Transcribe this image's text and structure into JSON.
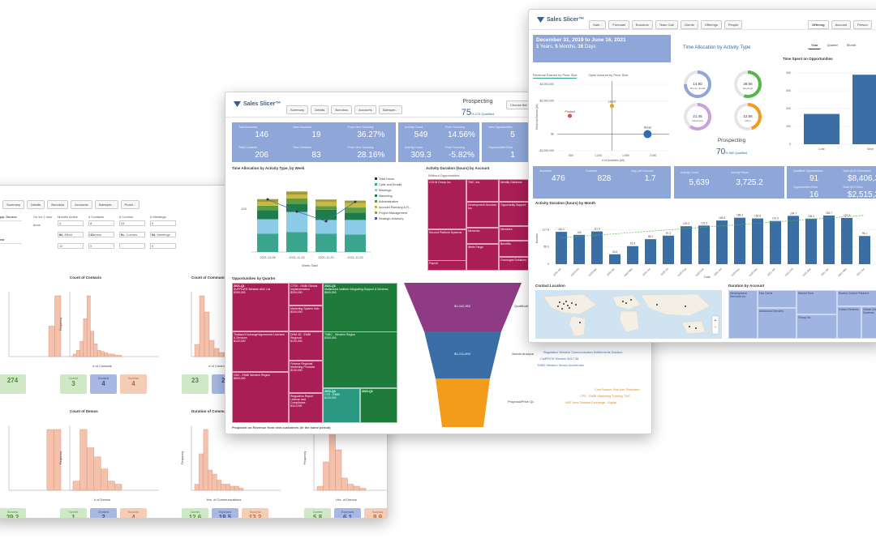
{
  "win1": {
    "buttons": [
      "Summary",
      "Details",
      "Bonobos",
      "Accounts",
      "Salesper...",
      "Prosh..."
    ],
    "filters": [
      "Opp. Source",
      "Year"
    ],
    "field_labels": [
      "Months Active",
      "# Contacts",
      "# Comms",
      "# Meetings",
      "Hrs. Effort",
      "# Demos",
      "Hrs. Comms",
      "Hrs. Meetings"
    ],
    "field_values": [
      "4",
      "8",
      "24",
      "0",
      "30",
      "12",
      "0",
      "24",
      "12",
      "0",
      "",
      "0"
    ],
    "misc": "Go for 1 hour",
    "misc2": "done",
    "charts": [
      {
        "title": "",
        "xlabel": "",
        "stats": [
          [
            "",
            "274"
          ]
        ]
      },
      {
        "title": "Count of Contacts",
        "xlabel": "# of Contacts",
        "ylabel": "Frequency",
        "stats": [
          [
            "Current",
            "3"
          ],
          [
            "Greatest",
            "4"
          ],
          [
            "Success",
            "4"
          ]
        ]
      },
      {
        "title": "Count of Communications",
        "xlabel": "# of Communications",
        "ylabel": "",
        "stats": [
          [
            "",
            "23"
          ],
          [
            "",
            "28"
          ]
        ]
      },
      {
        "title": "",
        "xlabel": "",
        "stats": [
          [
            "Success",
            "39.2"
          ]
        ]
      },
      {
        "title": "Count of Demos",
        "xlabel": "# of Demos",
        "ylabel": "Frequency",
        "stats": [
          [
            "Current",
            "1"
          ],
          [
            "Greatest",
            "2"
          ],
          [
            "Success",
            "4"
          ]
        ]
      },
      {
        "title": "Duration of Communications",
        "xlabel": "Hrs. of Communications",
        "ylabel": "Frequency",
        "stats": [
          [
            "Current",
            "12.6"
          ],
          [
            "Expenses",
            "18.5"
          ],
          [
            "Success",
            "13.2"
          ]
        ]
      },
      {
        "title": "",
        "xlabel": "Hrs. of Demos",
        "ylabel": "Frequency",
        "stats": [
          [
            "Current",
            "5.8"
          ],
          [
            "Expenses",
            "6.1"
          ],
          [
            "Success",
            "8.9"
          ]
        ]
      }
    ]
  },
  "win2": {
    "logo": "Sales Slicer™",
    "tabs": [
      "Summary",
      "Details",
      "Bonobos",
      "Accounts",
      "Salesper..."
    ],
    "prospect_title": "Prospecting",
    "prospect_pct": "75",
    "prospect_sub": "% 275 Qualified",
    "choose": "Choose the...",
    "kpis1": [
      [
        "Total Accounts",
        "146"
      ],
      [
        "New Accounts",
        "19"
      ],
      [
        "From New Sourcing",
        "36.27%"
      ],
      [
        "Total Contacts",
        "206"
      ],
      [
        "New Contacts",
        "83"
      ],
      [
        "From New Sourcing",
        "28.16%"
      ]
    ],
    "kpis2": [
      [
        "Activity Count",
        "549"
      ],
      [
        "From Sourcing",
        "14.56%"
      ],
      [
        "Activity Hours",
        "309.3"
      ],
      [
        "From Sourcing",
        "-5.82%"
      ]
    ],
    "kpis3": [
      [
        "New Opportunities",
        "5"
      ],
      [
        "Opportunities Won",
        "1"
      ]
    ],
    "sec1": "Time Allocation by Activity Type, by Week",
    "sec2": "Activity Duration (hours) by Account",
    "sec2sub": "Without Opportunities",
    "sec3": "Opportunities by Quarter",
    "sec4": "Proposed on Revenue from new customers (in the same period)",
    "week_ticks": [
      "2021-11-08",
      "2021-11-15",
      "2021-11-22",
      "2021-11-29"
    ],
    "week_xlabel": "Week Start",
    "week_y": [
      "100",
      "200"
    ],
    "legend": [
      "Total Hours",
      "Calls and Emails",
      "Meetings",
      "Marketing",
      "Administrative",
      "Account Planning & R...",
      "Project Management",
      "Strategic Advisory"
    ],
    "legend_colors": [
      "#333",
      "#3aa58c",
      "#8ccbe8",
      "#1e7b4c",
      "#5b9d3f",
      "#c9b93c",
      "#9e9c3a",
      "#5e4e8e"
    ],
    "treemap_labels": [
      "CGLM Group Inc.",
      "TMC, Inc.",
      "Identity Solutions",
      "Opportunity Support",
      "Development Services Inc.",
      "Memento",
      "Members",
      "Benefits",
      "Second Platform Systems",
      "Wells Fargo",
      "Oncologist Solutions",
      "Payroll"
    ],
    "opp_q": [
      "2021-Q1",
      "2021-Q2",
      "2021-Q3",
      "2022-Q1",
      "2022-Q4",
      "2022-Q2",
      "2022-Q3",
      "2022-Q1"
    ],
    "opp_labels": [
      "SUPPLIER Western ABC Ltd",
      "$300,000",
      "CTSS - EMBI Clinical Implementation",
      "Marketing System Hub",
      "$200,000",
      "Multimedia Institute Integrating Support & Services",
      "$600,000",
      "Thailand Exchange/Agreement Licenses & Services",
      "$122,000",
      "Vendor Express Payment Platform",
      "$120,000",
      "DHM 4D - EMBI Regional",
      "$130,000",
      "Finance Regional Marketing Products",
      "$130,000",
      "Reliance Express Regional Licenses",
      "$130,000",
      "Tailored Solutions",
      "$120,000",
      "Regulation Report License and Compliance",
      "$110,000",
      "CBC - EMBI Western Region",
      "$600,000",
      "TMBC - Western Region",
      "$300,000",
      "CTR - EMBI",
      "$120,000"
    ],
    "funnel": [
      [
        "$1,042,952",
        "Qualification"
      ],
      [
        "$1,211,000",
        "Needs Analysis"
      ],
      [
        "",
        "Proposal/Price Quote"
      ]
    ]
  },
  "win3": {
    "logo": "Sales Slicer™",
    "tabs": [
      "Sale...",
      "Forecast",
      "Bonobos",
      "Team Call",
      "Clients",
      "Offerings",
      "People"
    ],
    "seg1": [
      "Offering",
      "Account",
      "Person"
    ],
    "seg2": [
      "Year",
      "Quarter",
      "Month"
    ],
    "date_range": "December 31, 2019 to June 16, 2021",
    "duration_parts": [
      "1",
      "Years,",
      "5",
      "Months,",
      "16",
      "Days"
    ],
    "scatter_tabs": [
      "Revenue Earned by Price Size",
      "Open Amount by Price Size"
    ],
    "scatter_y": [
      "$3,000,000",
      "$2,000,000",
      "$0",
      "-$1,000,000"
    ],
    "scatter_x": [
      "500",
      "1,000",
      "1,500",
      "2,000"
    ],
    "scatter_xlabel": "# of Activities (All)",
    "scatter_ylabel": "Revenue Earned (All)",
    "scatter_points": [
      {
        "label": "Product",
        "x": 480,
        "y": 1100000,
        "c": "#d9534f"
      },
      {
        "label": "LEGO",
        "x": 1250,
        "y": 1700000,
        "c": "#e0a72a"
      },
      {
        "label": "Retail",
        "x": 1900,
        "y": 0,
        "c": "#2e6db5"
      }
    ],
    "alloc_title": "Time Allocation by Activity Type",
    "gauges": [
      [
        "14.80",
        "Phone / Email",
        "#8fa7d8"
      ],
      [
        "28.05",
        "Meetings",
        "#53b848"
      ],
      [
        "21.45",
        "Marketing",
        "#c7a1d8"
      ],
      [
        "12.55",
        "Other",
        "#f39c1b"
      ]
    ],
    "prospect_title": "Prospecting",
    "prospect_pct": "70",
    "prospect_sub": "% 580 Qualified",
    "spent_title": "Time Spent on Opportunities",
    "spent_y": [
      "400",
      "300",
      "200",
      "100",
      "0"
    ],
    "spent_x": [
      "Lost",
      "Won"
    ],
    "spent_values": [
      170,
      390
    ],
    "kpis": [
      [
        "Accounts",
        "476"
      ],
      [
        "Contacts",
        "828"
      ],
      [
        "Avg. per Account",
        "1.7"
      ],
      [
        "Activity Count",
        "5,639"
      ],
      [
        "Activity Hours",
        "3,725.2"
      ]
    ],
    "kpis_right": [
      [
        "Qualified Opportunities",
        "91"
      ],
      [
        "Total QUS Generated",
        "$8,406,3"
      ],
      [
        "Opportunities Won",
        "16"
      ],
      [
        "Total QCV Won",
        "$2,515,3"
      ]
    ],
    "duration_title": "Activity Duration (hours) by Month",
    "duration_ylabel": "Duration",
    "duration_xlabel": "Date",
    "bars": [
      {
        "m": "2020-Jan",
        "v": 110.2
      },
      {
        "m": "2020-Feb",
        "v": 100.0
      },
      {
        "m": "2020-Mar",
        "v": 111.5
      },
      {
        "m": "2020-Apr",
        "v": 33.8
      },
      {
        "m": "2020-May",
        "v": 61.5
      },
      {
        "m": "2020-Jun",
        "v": 85.2
      },
      {
        "m": "2020-Jul",
        "v": 97.3
      },
      {
        "m": "2020-Aug",
        "v": 129.3
      },
      {
        "m": "2020-Sep",
        "v": 131.5
      },
      {
        "m": "2020-Oct",
        "v": 148.8
      },
      {
        "m": "2020-Nov",
        "v": 158.3
      },
      {
        "m": "2020-Dec",
        "v": 155.8
      },
      {
        "m": "2021-Jan",
        "v": 147.3
      },
      {
        "m": "2021-Feb",
        "v": 164.7
      },
      {
        "m": "2021-Mar",
        "v": 155.3
      },
      {
        "m": "2021-Apr",
        "v": 165.7
      },
      {
        "m": "2021-May",
        "v": 157.5
      },
      {
        "m": "2021-Jun",
        "v": 96.1
      }
    ],
    "duration_y": [
      "117.8",
      "58.9",
      "0"
    ],
    "contact_title": "Contact Location",
    "account_title": "Duration by Account",
    "account_labels": [
      "Development Services Inc.",
      "Dial Cards",
      "Advanced Services",
      "Market Tech",
      "Group Inc",
      "Boston Control Partners",
      "Cotton Services",
      "Global Solutions Systems"
    ]
  },
  "annotations": {
    "blue": [
      "Regulation Western Communication Entitlements Solution",
      "CallPROS Western $417,98",
      "TMBS Western Sessio Accelerator"
    ],
    "orange": [
      "Core Boston: Bus Kee Simulated",
      "CPS - EMBI Marketing Training TWC",
      "NZE New Zealand Exchange - Digital"
    ]
  }
}
